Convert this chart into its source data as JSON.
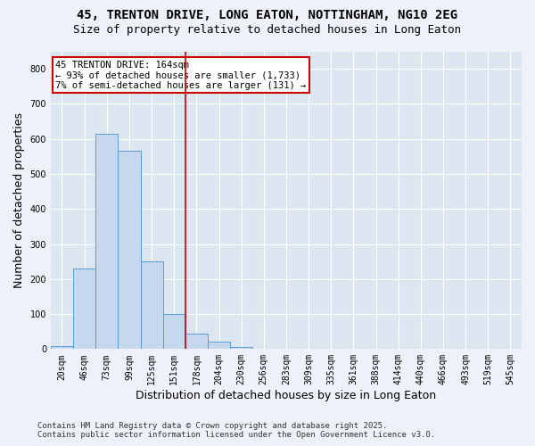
{
  "title_line1": "45, TRENTON DRIVE, LONG EATON, NOTTINGHAM, NG10 2EG",
  "title_line2": "Size of property relative to detached houses in Long Eaton",
  "xlabel": "Distribution of detached houses by size in Long Eaton",
  "ylabel": "Number of detached properties",
  "footer_line1": "Contains HM Land Registry data © Crown copyright and database right 2025.",
  "footer_line2": "Contains public sector information licensed under the Open Government Licence v3.0.",
  "bin_labels": [
    "20sqm",
    "46sqm",
    "73sqm",
    "99sqm",
    "125sqm",
    "151sqm",
    "178sqm",
    "204sqm",
    "230sqm",
    "256sqm",
    "283sqm",
    "309sqm",
    "335sqm",
    "361sqm",
    "388sqm",
    "414sqm",
    "440sqm",
    "466sqm",
    "493sqm",
    "519sqm",
    "545sqm"
  ],
  "bar_values": [
    8,
    230,
    615,
    565,
    250,
    100,
    45,
    20,
    5,
    0,
    0,
    0,
    0,
    0,
    0,
    0,
    0,
    0,
    0,
    0,
    0
  ],
  "bar_color": "#c5d8ed",
  "bar_edge_color": "#5b9bd5",
  "vline_x": 5.5,
  "vline_color": "#cc0000",
  "annotation_text": "45 TRENTON DRIVE: 164sqm\n← 93% of detached houses are smaller (1,733)\n7% of semi-detached houses are larger (131) →",
  "annotation_box_color": "#ffffff",
  "annotation_box_edge": "#cc0000",
  "ylim": [
    0,
    850
  ],
  "yticks": [
    0,
    100,
    200,
    300,
    400,
    500,
    600,
    700,
    800
  ],
  "background_color": "#eef2f8",
  "plot_bg_color": "#dce6f0",
  "grid_color": "#ffffff",
  "title_fontsize": 10,
  "subtitle_fontsize": 9,
  "axis_label_fontsize": 9,
  "tick_fontsize": 7,
  "footer_fontsize": 6.5
}
